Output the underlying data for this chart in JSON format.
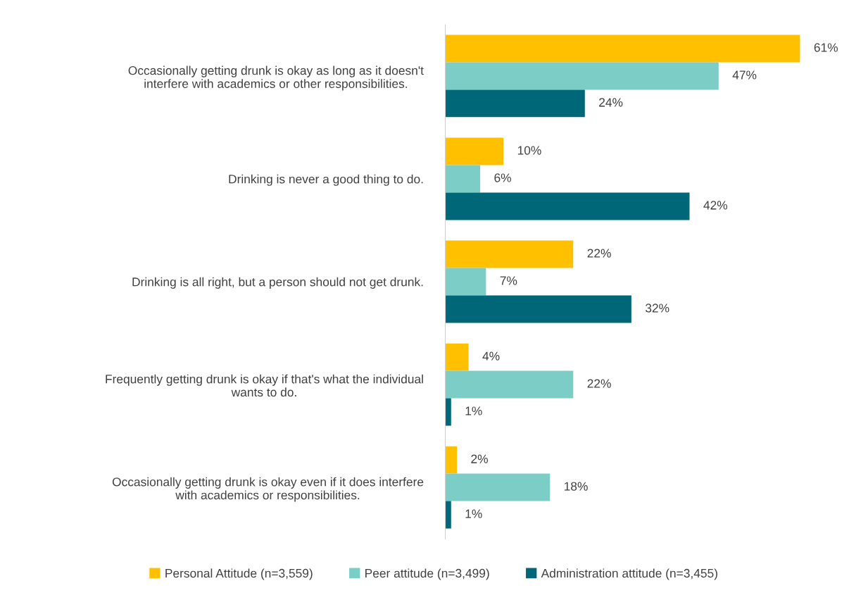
{
  "chart_data": {
    "type": "bar",
    "orientation": "horizontal",
    "categories": [
      "Occasionally getting drunk is okay as long as it doesn't\ninterfere with academics or other responsibilities.",
      "Drinking is never a good thing to do.",
      "Drinking is all right, but a person should not get drunk.",
      "Frequently getting drunk is okay if that's what the individual\nwants to do.",
      "Occasionally getting drunk is okay even if it does interfere\nwith academics or responsibilities."
    ],
    "series": [
      {
        "name": "Personal Attitude (n=3,559)",
        "color": "#ffc000",
        "values": [
          61,
          10,
          22,
          4,
          2
        ],
        "value_labels": [
          "61%",
          "10%",
          "22%",
          "4%",
          "2%"
        ]
      },
      {
        "name": "Peer attitude (n=3,499)",
        "color": "#7ccdc5",
        "values": [
          47,
          6,
          7,
          22,
          18
        ],
        "value_labels": [
          "47%",
          "6%",
          "7%",
          "22%",
          "18%"
        ]
      },
      {
        "name": "Administration attitude (n=3,455)",
        "color": "#006778",
        "values": [
          24,
          42,
          32,
          1,
          1
        ],
        "value_labels": [
          "24%",
          "42%",
          "32%",
          "1%",
          "1%"
        ]
      }
    ],
    "tick_labels": "y",
    "grid": false,
    "legend": "bottom"
  }
}
